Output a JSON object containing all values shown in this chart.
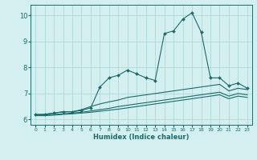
{
  "xlabel": "Humidex (Indice chaleur)",
  "bg_color": "#d4efef",
  "grid_color": "#b0d8d8",
  "line_color": "#1a6b6b",
  "xlim": [
    -0.5,
    23.5
  ],
  "ylim": [
    5.8,
    10.4
  ],
  "xticks": [
    0,
    1,
    2,
    3,
    4,
    5,
    6,
    7,
    8,
    9,
    10,
    11,
    12,
    13,
    14,
    15,
    16,
    17,
    18,
    19,
    20,
    21,
    22,
    23
  ],
  "yticks": [
    6,
    7,
    8,
    9,
    10
  ],
  "line1_x": [
    0,
    1,
    2,
    3,
    4,
    5,
    6,
    7,
    8,
    9,
    10,
    11,
    12,
    13,
    14,
    15,
    16,
    17,
    18,
    19,
    20,
    21,
    22,
    23
  ],
  "line1_y": [
    6.2,
    6.2,
    6.25,
    6.3,
    6.3,
    6.35,
    6.45,
    7.25,
    7.6,
    7.7,
    7.9,
    7.75,
    7.6,
    7.5,
    9.3,
    9.4,
    9.85,
    10.1,
    9.35,
    7.6,
    7.6,
    7.3,
    7.4,
    7.2
  ],
  "line2_x": [
    0,
    1,
    2,
    3,
    4,
    5,
    6,
    7,
    8,
    9,
    10,
    11,
    12,
    13,
    14,
    15,
    16,
    17,
    18,
    19,
    20,
    21,
    22,
    23
  ],
  "line2_y": [
    6.18,
    6.2,
    6.25,
    6.3,
    6.3,
    6.38,
    6.5,
    6.6,
    6.68,
    6.75,
    6.85,
    6.9,
    6.95,
    7.0,
    7.05,
    7.1,
    7.15,
    7.2,
    7.25,
    7.3,
    7.35,
    7.1,
    7.2,
    7.15
  ],
  "line3_x": [
    0,
    1,
    2,
    3,
    4,
    5,
    6,
    7,
    8,
    9,
    10,
    11,
    12,
    13,
    14,
    15,
    16,
    17,
    18,
    19,
    20,
    21,
    22,
    23
  ],
  "line3_y": [
    6.18,
    6.18,
    6.2,
    6.22,
    6.25,
    6.28,
    6.33,
    6.38,
    6.43,
    6.5,
    6.55,
    6.6,
    6.65,
    6.7,
    6.75,
    6.8,
    6.85,
    6.9,
    6.95,
    7.0,
    7.05,
    6.9,
    7.0,
    6.95
  ],
  "line4_x": [
    0,
    1,
    2,
    3,
    4,
    5,
    6,
    7,
    8,
    9,
    10,
    11,
    12,
    13,
    14,
    15,
    16,
    17,
    18,
    19,
    20,
    21,
    22,
    23
  ],
  "line4_y": [
    6.15,
    6.15,
    6.17,
    6.2,
    6.22,
    6.25,
    6.28,
    6.32,
    6.36,
    6.4,
    6.45,
    6.5,
    6.55,
    6.6,
    6.65,
    6.7,
    6.75,
    6.8,
    6.85,
    6.9,
    6.95,
    6.8,
    6.9,
    6.85
  ]
}
